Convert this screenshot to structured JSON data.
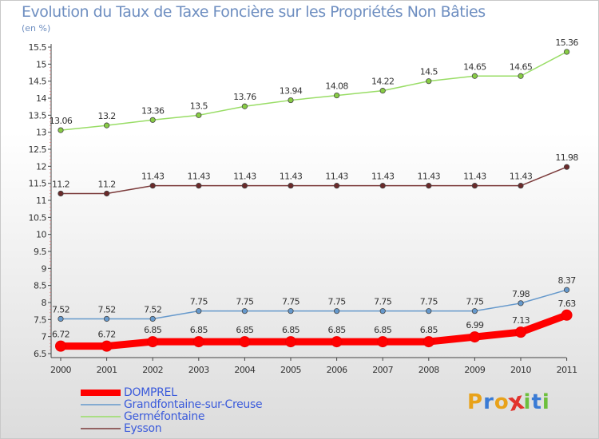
{
  "page": {
    "title": "Evolution du Taux de Taxe Foncière sur les Propriétés Non Bâties",
    "unit": "(en %)",
    "brand": "Proxiti",
    "brand_colors": [
      "#e8a21a",
      "#3a7bd5",
      "#e8a21a",
      "#e2342d",
      "#6dbf3c",
      "#3a7bd5",
      "#6dbf3c"
    ]
  },
  "chart_data": {
    "type": "line",
    "title": "Evolution du Taux de Taxe Foncière sur les Propriétés Non Bâties",
    "ylabel": "(en %)",
    "xlabel": "",
    "x": [
      "2000",
      "2001",
      "2002",
      "2003",
      "2004",
      "2005",
      "2006",
      "2007",
      "2008",
      "2009",
      "2010",
      "2011"
    ],
    "ylim": [
      6.5,
      15.5
    ],
    "yticks": [
      "6.5",
      "7",
      "7.5",
      "8",
      "8.5",
      "9",
      "9.5",
      "10",
      "10.5",
      "11",
      "11.5",
      "12",
      "12.5",
      "13",
      "13.5",
      "14",
      "14.5",
      "15",
      "15.5"
    ],
    "grid": false,
    "legend": "bottom-left",
    "series": [
      {
        "name": "DOMPREL",
        "color": "#ff0000",
        "values": [
          6.72,
          6.72,
          6.85,
          6.85,
          6.85,
          6.85,
          6.85,
          6.85,
          6.85,
          6.99,
          7.13,
          7.63
        ],
        "labels": [
          "6.72",
          "6.72",
          "6.85",
          "6.85",
          "6.85",
          "6.85",
          "6.85",
          "6.85",
          "6.85",
          "6.99",
          "7.13",
          "7.63"
        ]
      },
      {
        "name": "Grandfontaine-sur-Creuse",
        "color": "#6699cc",
        "values": [
          7.52,
          7.52,
          7.52,
          7.75,
          7.75,
          7.75,
          7.75,
          7.75,
          7.75,
          7.75,
          7.98,
          8.37
        ],
        "labels": [
          "7.52",
          "7.52",
          "7.52",
          "7.75",
          "7.75",
          "7.75",
          "7.75",
          "7.75",
          "7.75",
          "7.75",
          "7.98",
          "8.37"
        ]
      },
      {
        "name": "Germéfontaine",
        "color": "#99dd66",
        "values": [
          13.06,
          13.2,
          13.36,
          13.5,
          13.76,
          13.94,
          14.08,
          14.22,
          14.5,
          14.65,
          14.65,
          15.36
        ],
        "labels": [
          "13.06",
          "13.2",
          "13.36",
          "13.5",
          "13.76",
          "13.94",
          "14.08",
          "14.22",
          "14.5",
          "14.65",
          "14.65",
          "15.36"
        ]
      },
      {
        "name": "Eysson",
        "color": "#7b3a3a",
        "values": [
          11.2,
          11.2,
          11.43,
          11.43,
          11.43,
          11.43,
          11.43,
          11.43,
          11.43,
          11.43,
          11.43,
          11.98
        ],
        "labels": [
          "11.2",
          "11.2",
          "11.43",
          "11.43",
          "11.43",
          "11.43",
          "11.43",
          "11.43",
          "11.43",
          "11.43",
          "11.43",
          "11.98"
        ]
      }
    ]
  }
}
